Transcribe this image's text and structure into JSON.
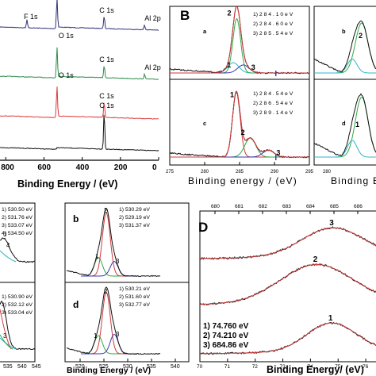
{
  "figure": {
    "panel_letters": [
      "B",
      "D"
    ]
  },
  "chart_data": [
    {
      "type": "line",
      "panel": "A",
      "xlabel": "Binding Energy / (eV)",
      "ylabel": "",
      "title": "",
      "xlim": [
        830,
        0
      ],
      "x_ticks": [
        "800",
        "600",
        "400",
        "200",
        "0"
      ],
      "series": [
        {
          "name": "",
          "color": "#33337a",
          "peaks": [
            {
              "label": "F 1s",
              "x": 689
            },
            {
              "label": "O 1s",
              "x": 532
            },
            {
              "label": "C 1s",
              "x": 285
            },
            {
              "label": "Al 2p",
              "x": 74
            }
          ]
        },
        {
          "name": "",
          "color": "#2e8b4a",
          "peaks": [
            {
              "label": "O 1s",
              "x": 532
            },
            {
              "label": "C 1s",
              "x": 285
            },
            {
              "label": "Al 2p",
              "x": 74
            }
          ]
        },
        {
          "name": "",
          "color": "#dd3a3a",
          "peaks": [
            {
              "label": "O 1s",
              "x": 532
            },
            {
              "label": "C 1s",
              "x": 285
            }
          ]
        },
        {
          "name": "",
          "color": "#111111",
          "peaks": [
            {
              "label": "C 1s",
              "x": 285
            }
          ]
        }
      ]
    },
    {
      "type": "line",
      "panel": "B",
      "xlabel": "Binding energy / (eV)",
      "xlabel_right": "Binding E",
      "subplots": [
        {
          "letter": "a",
          "legend": [
            "1) 2 8 4 . 1 0  e V",
            "2) 2 8 4 . 6 0  e V",
            "3) 2 8 5 . 5 4  e V"
          ],
          "peak_labels": [
            "1",
            "2",
            "3"
          ],
          "components": [
            {
              "center": 284.1,
              "height": 0.18,
              "color": "#2fb5c8"
            },
            {
              "center": 284.6,
              "height": 0.95,
              "color": "#2eaa44"
            },
            {
              "center": 285.54,
              "height": 0.14,
              "color": "#3a3ab0"
            }
          ]
        },
        {
          "letter": "b",
          "peak_labels": [
            "2"
          ]
        },
        {
          "letter": "c",
          "legend": [
            "1) 2 8 4 . 5 4  e V",
            "2) 2 8 6 . 5 4  e V",
            "3) 2 8 9 . 1 4  e V"
          ],
          "peak_labels": [
            "1",
            "2",
            "3"
          ],
          "components": [
            {
              "center": 284.54,
              "height": 0.95,
              "color": "#d23a3a"
            },
            {
              "center": 286.54,
              "height": 0.28,
              "color": "#2eaa44"
            },
            {
              "center": 289.14,
              "height": 0.1,
              "color": "#3a3ab0"
            }
          ]
        },
        {
          "letter": "d",
          "peak_labels": [
            "1"
          ]
        }
      ],
      "x_ticks": [
        "275",
        "280",
        "285",
        "290",
        "295"
      ],
      "x_ticks_right": [
        "280"
      ]
    },
    {
      "type": "line",
      "panel": "C",
      "xlabel": "Binding Energy / (eV)",
      "x_ticks_left": [
        "535",
        "540",
        "545"
      ],
      "x_ticks_mid": [
        "520",
        "525",
        "530",
        "535",
        "540"
      ],
      "subplots": [
        {
          "legend": [
            "1) 530.50 eV",
            "2) 531.76 eV",
            "3) 533.07 eV",
            "4) 534.50 eV"
          ],
          "peak_labels": [
            "3",
            "4"
          ]
        },
        {
          "letter": "b",
          "legend": [
            "1) 530.29 eV",
            "2) 529.19 eV",
            "3) 531.37 eV"
          ],
          "peak_labels": [
            "2",
            "1",
            "3"
          ]
        },
        {
          "legend": [
            "1) 530.90 eV",
            "2) 532.12 eV",
            "3) 533.04 eV"
          ],
          "peak_labels": [
            "3"
          ]
        },
        {
          "letter": "d",
          "legend": [
            "1) 530.21 eV",
            "2) 531.60 eV",
            "3) 532.77 eV"
          ],
          "peak_labels": [
            "1",
            "2",
            "3"
          ]
        }
      ]
    },
    {
      "type": "line",
      "panel": "D",
      "xlabel": "Binding Energy/ (eV)",
      "xlim": [
        70,
        76.6
      ],
      "x_ticks_bottom": [
        "70",
        "71",
        "72",
        "73",
        "74",
        "75",
        "76"
      ],
      "x_ticks_top": [
        "680",
        "681",
        "682",
        "683",
        "684",
        "685",
        "686",
        "687"
      ],
      "legend": [
        "1) 74.760 eV",
        "2) 74.210 eV",
        "3) 684.86 eV"
      ],
      "series": [
        {
          "label": "3",
          "center": 74.8,
          "width": 1.1,
          "height": 0.25
        },
        {
          "label": "2",
          "center": 74.21,
          "width": 1.3,
          "height": 0.45
        },
        {
          "label": "1",
          "center": 74.76,
          "width": 0.9,
          "height": 0.3
        }
      ]
    }
  ]
}
